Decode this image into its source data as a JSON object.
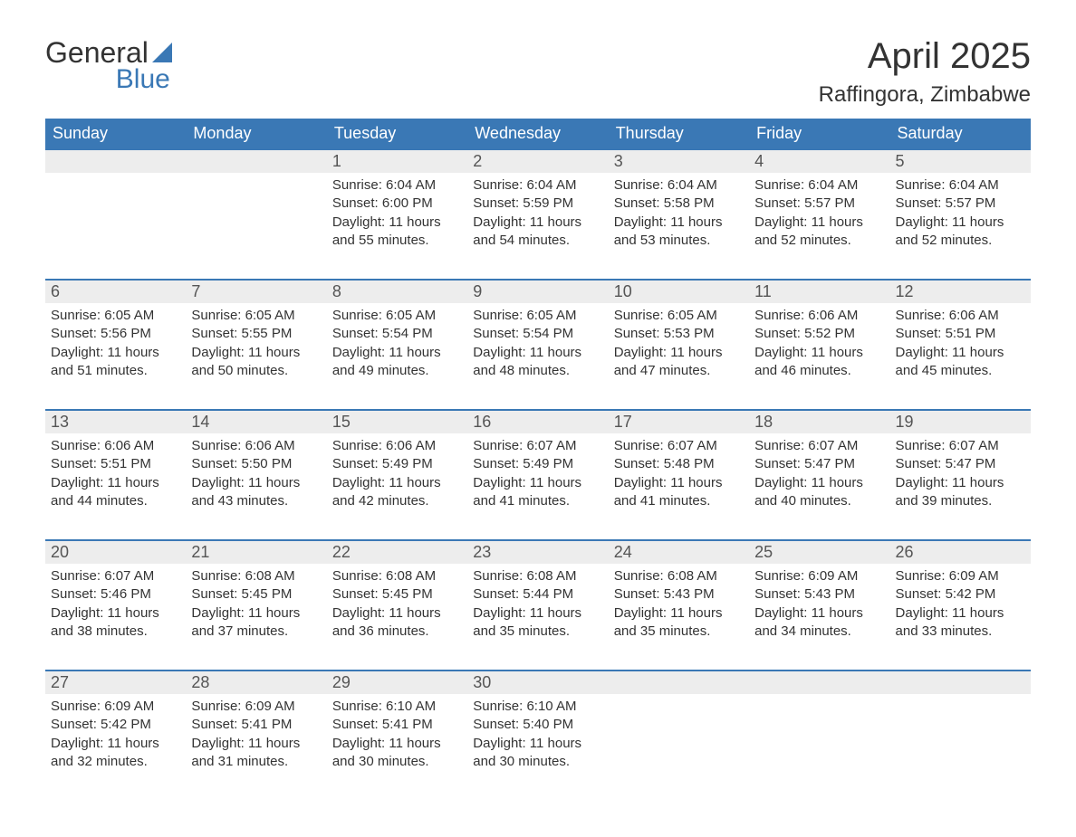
{
  "logo": {
    "text1": "General",
    "text2": "Blue"
  },
  "title": "April 2025",
  "location": "Raffingora, Zimbabwe",
  "colors": {
    "header_bg": "#3a78b5",
    "header_text": "#ffffff",
    "daynum_bg": "#ededed",
    "daynum_text": "#555555",
    "body_text": "#333333",
    "page_bg": "#ffffff",
    "rule": "#3a78b5"
  },
  "fonts": {
    "title_pt": 40,
    "location_pt": 24,
    "header_pt": 18,
    "daynum_pt": 18,
    "body_pt": 15
  },
  "weekdays": [
    "Sunday",
    "Monday",
    "Tuesday",
    "Wednesday",
    "Thursday",
    "Friday",
    "Saturday"
  ],
  "weeks": [
    [
      null,
      null,
      {
        "n": "1",
        "sunrise": "6:04 AM",
        "sunset": "6:00 PM",
        "daylight": "11 hours and 55 minutes."
      },
      {
        "n": "2",
        "sunrise": "6:04 AM",
        "sunset": "5:59 PM",
        "daylight": "11 hours and 54 minutes."
      },
      {
        "n": "3",
        "sunrise": "6:04 AM",
        "sunset": "5:58 PM",
        "daylight": "11 hours and 53 minutes."
      },
      {
        "n": "4",
        "sunrise": "6:04 AM",
        "sunset": "5:57 PM",
        "daylight": "11 hours and 52 minutes."
      },
      {
        "n": "5",
        "sunrise": "6:04 AM",
        "sunset": "5:57 PM",
        "daylight": "11 hours and 52 minutes."
      }
    ],
    [
      {
        "n": "6",
        "sunrise": "6:05 AM",
        "sunset": "5:56 PM",
        "daylight": "11 hours and 51 minutes."
      },
      {
        "n": "7",
        "sunrise": "6:05 AM",
        "sunset": "5:55 PM",
        "daylight": "11 hours and 50 minutes."
      },
      {
        "n": "8",
        "sunrise": "6:05 AM",
        "sunset": "5:54 PM",
        "daylight": "11 hours and 49 minutes."
      },
      {
        "n": "9",
        "sunrise": "6:05 AM",
        "sunset": "5:54 PM",
        "daylight": "11 hours and 48 minutes."
      },
      {
        "n": "10",
        "sunrise": "6:05 AM",
        "sunset": "5:53 PM",
        "daylight": "11 hours and 47 minutes."
      },
      {
        "n": "11",
        "sunrise": "6:06 AM",
        "sunset": "5:52 PM",
        "daylight": "11 hours and 46 minutes."
      },
      {
        "n": "12",
        "sunrise": "6:06 AM",
        "sunset": "5:51 PM",
        "daylight": "11 hours and 45 minutes."
      }
    ],
    [
      {
        "n": "13",
        "sunrise": "6:06 AM",
        "sunset": "5:51 PM",
        "daylight": "11 hours and 44 minutes."
      },
      {
        "n": "14",
        "sunrise": "6:06 AM",
        "sunset": "5:50 PM",
        "daylight": "11 hours and 43 minutes."
      },
      {
        "n": "15",
        "sunrise": "6:06 AM",
        "sunset": "5:49 PM",
        "daylight": "11 hours and 42 minutes."
      },
      {
        "n": "16",
        "sunrise": "6:07 AM",
        "sunset": "5:49 PM",
        "daylight": "11 hours and 41 minutes."
      },
      {
        "n": "17",
        "sunrise": "6:07 AM",
        "sunset": "5:48 PM",
        "daylight": "11 hours and 41 minutes."
      },
      {
        "n": "18",
        "sunrise": "6:07 AM",
        "sunset": "5:47 PM",
        "daylight": "11 hours and 40 minutes."
      },
      {
        "n": "19",
        "sunrise": "6:07 AM",
        "sunset": "5:47 PM",
        "daylight": "11 hours and 39 minutes."
      }
    ],
    [
      {
        "n": "20",
        "sunrise": "6:07 AM",
        "sunset": "5:46 PM",
        "daylight": "11 hours and 38 minutes."
      },
      {
        "n": "21",
        "sunrise": "6:08 AM",
        "sunset": "5:45 PM",
        "daylight": "11 hours and 37 minutes."
      },
      {
        "n": "22",
        "sunrise": "6:08 AM",
        "sunset": "5:45 PM",
        "daylight": "11 hours and 36 minutes."
      },
      {
        "n": "23",
        "sunrise": "6:08 AM",
        "sunset": "5:44 PM",
        "daylight": "11 hours and 35 minutes."
      },
      {
        "n": "24",
        "sunrise": "6:08 AM",
        "sunset": "5:43 PM",
        "daylight": "11 hours and 35 minutes."
      },
      {
        "n": "25",
        "sunrise": "6:09 AM",
        "sunset": "5:43 PM",
        "daylight": "11 hours and 34 minutes."
      },
      {
        "n": "26",
        "sunrise": "6:09 AM",
        "sunset": "5:42 PM",
        "daylight": "11 hours and 33 minutes."
      }
    ],
    [
      {
        "n": "27",
        "sunrise": "6:09 AM",
        "sunset": "5:42 PM",
        "daylight": "11 hours and 32 minutes."
      },
      {
        "n": "28",
        "sunrise": "6:09 AM",
        "sunset": "5:41 PM",
        "daylight": "11 hours and 31 minutes."
      },
      {
        "n": "29",
        "sunrise": "6:10 AM",
        "sunset": "5:41 PM",
        "daylight": "11 hours and 30 minutes."
      },
      {
        "n": "30",
        "sunrise": "6:10 AM",
        "sunset": "5:40 PM",
        "daylight": "11 hours and 30 minutes."
      },
      null,
      null,
      null
    ]
  ],
  "labels": {
    "sunrise": "Sunrise: ",
    "sunset": "Sunset: ",
    "daylight": "Daylight: "
  }
}
